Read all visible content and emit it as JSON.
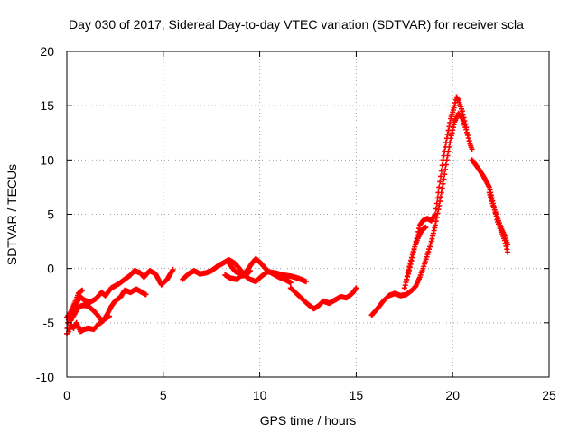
{
  "chart_data": {
    "type": "scatter",
    "title": "Day 030 of 2017, Sidereal Day-to-day VTEC variation (SDTVAR) for receiver scla",
    "xlabel": "GPS time / hours",
    "ylabel": "SDTVAR / TECUs",
    "xlim": [
      0,
      25
    ],
    "ylim": [
      -10,
      20
    ],
    "xticks": [
      0,
      5,
      10,
      15,
      20,
      25
    ],
    "yticks": [
      -10,
      -5,
      0,
      5,
      10,
      15,
      20
    ],
    "xtick_labels": [
      "0",
      "5",
      "10",
      "15",
      "20",
      "25"
    ],
    "ytick_labels": [
      "-10",
      "-5",
      "0",
      "5",
      "10",
      "15",
      "20"
    ],
    "grid": true,
    "legend": "none",
    "marker": "+",
    "color": "#ff0000",
    "series": [
      {
        "name": "SDTVAR",
        "segments": [
          [
            [
              0.0,
              -6.0
            ],
            [
              0.05,
              -5.0
            ],
            [
              0.15,
              -4.2
            ],
            [
              0.3,
              -3.8
            ],
            [
              0.5,
              -3.2
            ],
            [
              0.7,
              -2.6
            ],
            [
              0.9,
              -2.9
            ],
            [
              1.2,
              -3.1
            ],
            [
              1.5,
              -2.8
            ],
            [
              1.8,
              -2.2
            ],
            [
              2.0,
              -2.5
            ],
            [
              2.3,
              -1.8
            ],
            [
              2.7,
              -1.4
            ],
            [
              3.0,
              -1.0
            ],
            [
              3.3,
              -0.6
            ],
            [
              3.5,
              -0.2
            ],
            [
              3.8,
              -0.4
            ],
            [
              4.0,
              -0.8
            ],
            [
              4.3,
              -0.2
            ],
            [
              4.6,
              -0.5
            ],
            [
              4.9,
              -1.5
            ],
            [
              5.2,
              -1.0
            ],
            [
              5.4,
              -0.4
            ],
            [
              5.5,
              -0.1
            ]
          ],
          [
            [
              0.1,
              -5.8
            ],
            [
              0.2,
              -5.2
            ],
            [
              0.35,
              -5.5
            ],
            [
              0.5,
              -5.0
            ],
            [
              0.7,
              -5.8
            ],
            [
              0.9,
              -5.6
            ],
            [
              1.1,
              -5.5
            ],
            [
              1.4,
              -5.6
            ],
            [
              1.6,
              -5.2
            ],
            [
              1.9,
              -4.8
            ],
            [
              2.1,
              -4.2
            ],
            [
              2.3,
              -3.5
            ],
            [
              2.5,
              -3.0
            ],
            [
              2.8,
              -2.6
            ],
            [
              3.0,
              -2.0
            ],
            [
              3.3,
              -2.2
            ],
            [
              3.6,
              -1.9
            ],
            [
              3.9,
              -2.2
            ],
            [
              4.1,
              -2.4
            ]
          ],
          [
            [
              0.2,
              -4.8
            ],
            [
              0.4,
              -4.2
            ],
            [
              0.6,
              -3.6
            ],
            [
              0.8,
              -3.4
            ],
            [
              1.0,
              -3.4
            ],
            [
              1.2,
              -3.6
            ],
            [
              1.4,
              -3.9
            ],
            [
              1.6,
              -4.3
            ],
            [
              1.8,
              -4.8
            ],
            [
              2.0,
              -4.6
            ],
            [
              2.2,
              -4.4
            ]
          ],
          [
            [
              0.0,
              -4.5
            ],
            [
              0.2,
              -4.0
            ],
            [
              0.4,
              -3.2
            ],
            [
              0.6,
              -2.3
            ],
            [
              0.8,
              -2.0
            ]
          ],
          [
            [
              6.0,
              -1.0
            ],
            [
              6.3,
              -0.5
            ],
            [
              6.6,
              -0.2
            ],
            [
              6.9,
              -0.5
            ],
            [
              7.2,
              -0.4
            ],
            [
              7.5,
              -0.2
            ],
            [
              7.8,
              0.2
            ],
            [
              8.1,
              0.5
            ],
            [
              8.4,
              0.8
            ],
            [
              8.7,
              0.5
            ],
            [
              9.0,
              -0.1
            ],
            [
              9.2,
              -0.6
            ],
            [
              9.5,
              -1.0
            ],
            [
              9.8,
              -1.2
            ],
            [
              10.1,
              -0.7
            ],
            [
              10.4,
              -0.3
            ],
            [
              10.8,
              -0.4
            ],
            [
              11.2,
              -0.6
            ],
            [
              11.6,
              -0.7
            ],
            [
              12.0,
              -0.9
            ],
            [
              12.4,
              -1.2
            ]
          ],
          [
            [
              8.4,
              0.5
            ],
            [
              8.7,
              -0.2
            ],
            [
              9.0,
              -0.6
            ],
            [
              9.3,
              -0.3
            ],
            [
              9.6,
              0.5
            ],
            [
              9.8,
              0.9
            ],
            [
              10.0,
              0.6
            ],
            [
              10.2,
              0.2
            ],
            [
              10.4,
              -0.2
            ],
            [
              10.7,
              -0.5
            ],
            [
              11.0,
              -0.8
            ],
            [
              11.3,
              -1.0
            ],
            [
              11.6,
              -1.3
            ]
          ],
          [
            [
              8.2,
              -0.6
            ],
            [
              8.5,
              -0.9
            ],
            [
              8.8,
              -1.0
            ],
            [
              9.0,
              -0.7
            ],
            [
              9.3,
              -0.6
            ],
            [
              9.5,
              -0.2
            ]
          ],
          [
            [
              11.6,
              -1.8
            ],
            [
              11.9,
              -2.3
            ],
            [
              12.2,
              -2.8
            ],
            [
              12.5,
              -3.3
            ],
            [
              12.8,
              -3.7
            ],
            [
              13.0,
              -3.5
            ],
            [
              13.3,
              -3.0
            ],
            [
              13.6,
              -3.2
            ],
            [
              13.9,
              -2.9
            ],
            [
              14.2,
              -2.6
            ],
            [
              14.5,
              -2.7
            ],
            [
              14.8,
              -2.3
            ],
            [
              15.0,
              -1.8
            ]
          ],
          [
            [
              15.8,
              -4.3
            ],
            [
              16.1,
              -3.7
            ],
            [
              16.4,
              -3.0
            ],
            [
              16.7,
              -2.5
            ],
            [
              17.0,
              -2.3
            ],
            [
              17.3,
              -2.5
            ],
            [
              17.6,
              -2.4
            ],
            [
              17.9,
              -2.0
            ],
            [
              18.1,
              -1.6
            ],
            [
              18.3,
              -0.8
            ],
            [
              18.5,
              0.2
            ],
            [
              18.7,
              1.3
            ],
            [
              18.9,
              2.5
            ],
            [
              19.1,
              4.0
            ],
            [
              19.3,
              5.8
            ],
            [
              19.5,
              7.8
            ],
            [
              19.7,
              10.0
            ],
            [
              19.9,
              12.0
            ],
            [
              20.1,
              13.5
            ],
            [
              20.3,
              14.3
            ],
            [
              20.5,
              13.8
            ],
            [
              20.7,
              12.8
            ],
            [
              20.9,
              11.5
            ],
            [
              21.0,
              11.0
            ]
          ],
          [
            [
              17.5,
              -1.8
            ],
            [
              17.7,
              -0.5
            ],
            [
              17.9,
              1.0
            ],
            [
              18.1,
              2.5
            ],
            [
              18.3,
              4.0
            ],
            [
              18.5,
              4.5
            ],
            [
              18.7,
              4.6
            ],
            [
              18.9,
              4.4
            ],
            [
              19.1,
              5.0
            ],
            [
              19.3,
              7.5
            ],
            [
              19.5,
              10.0
            ],
            [
              19.7,
              12.0
            ],
            [
              19.9,
              13.8
            ],
            [
              20.1,
              15.0
            ],
            [
              20.2,
              15.8
            ],
            [
              20.3,
              15.5
            ],
            [
              20.5,
              14.5
            ],
            [
              20.7,
              13.0
            ]
          ],
          [
            [
              17.6,
              -1.0
            ],
            [
              17.8,
              0.5
            ],
            [
              18.0,
              1.8
            ],
            [
              18.2,
              2.8
            ],
            [
              18.4,
              3.5
            ],
            [
              18.6,
              3.8
            ]
          ],
          [
            [
              21.0,
              10.0
            ],
            [
              21.3,
              9.3
            ],
            [
              21.6,
              8.5
            ],
            [
              21.9,
              7.5
            ],
            [
              22.1,
              6.0
            ],
            [
              22.3,
              4.5
            ],
            [
              22.5,
              3.5
            ],
            [
              22.7,
              2.6
            ],
            [
              22.85,
              1.5
            ]
          ],
          [
            [
              21.9,
              7.0
            ],
            [
              22.1,
              5.8
            ],
            [
              22.3,
              4.8
            ],
            [
              22.5,
              3.8
            ],
            [
              22.7,
              3.0
            ],
            [
              22.85,
              2.2
            ]
          ]
        ]
      }
    ]
  }
}
